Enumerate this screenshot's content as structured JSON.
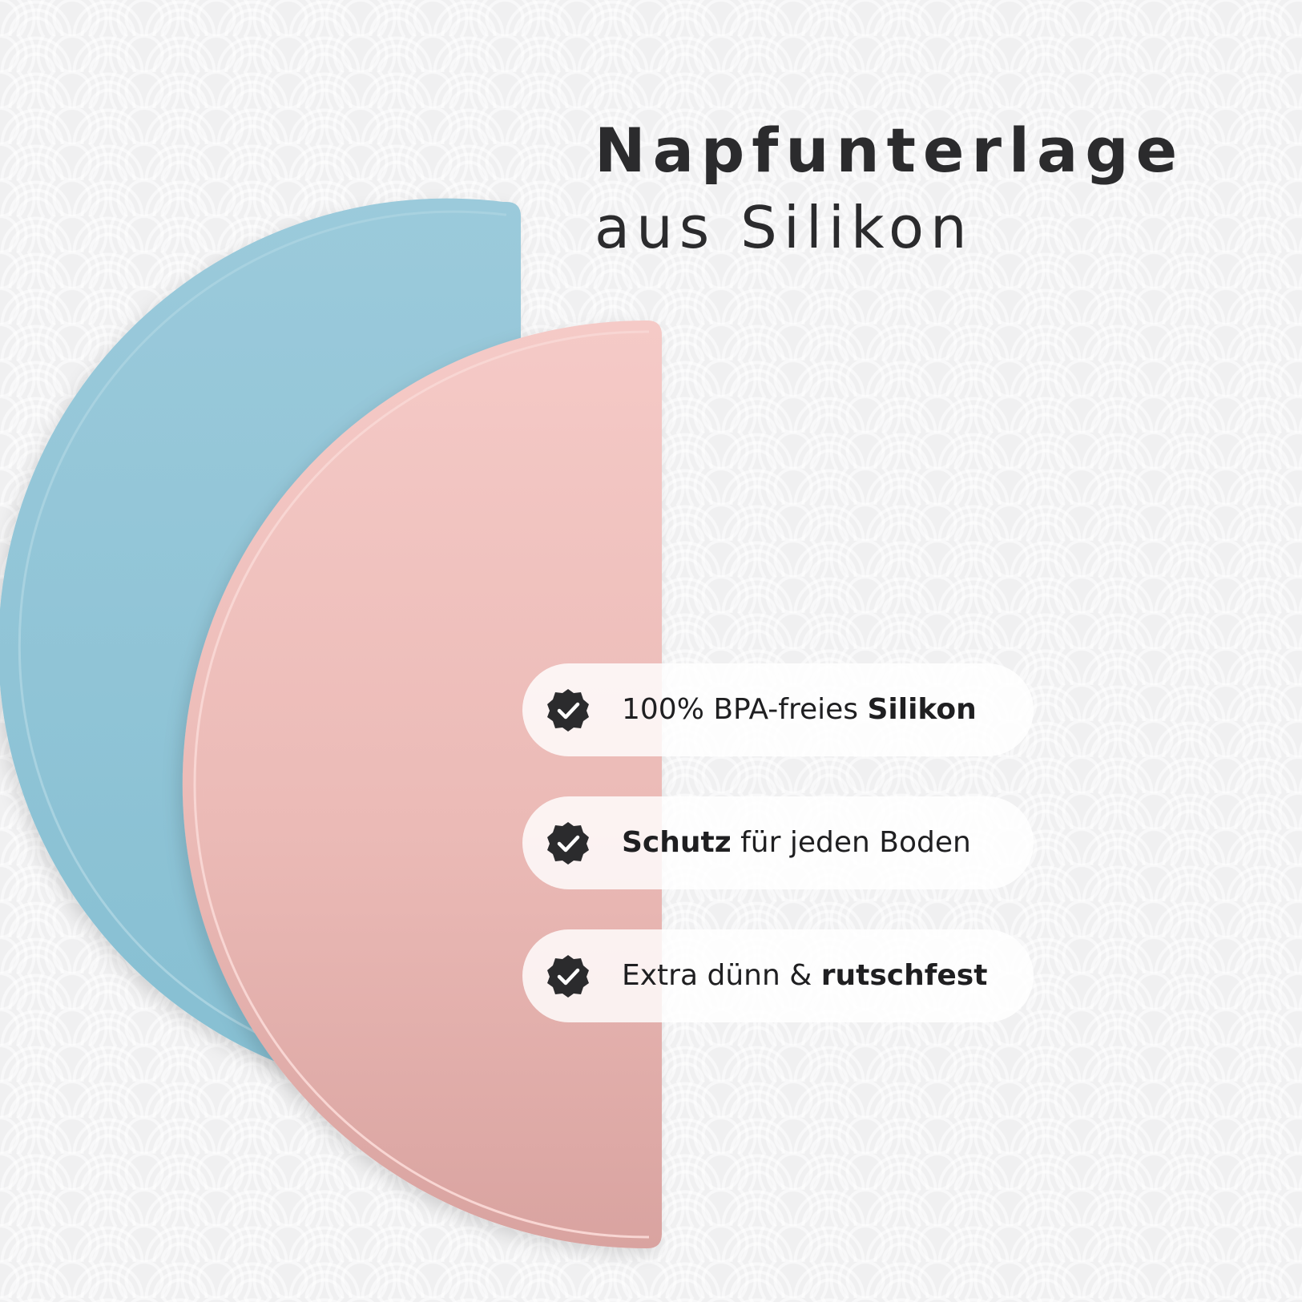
{
  "title": {
    "line1": "Napfunterlage",
    "line2": "aus Silikon"
  },
  "colors": {
    "mat_blue": "#94c6d6",
    "mat_pink": "#eab4b0",
    "text_dark": "#2b2b2d",
    "check_badge": "#2b2b2d"
  },
  "features": [
    {
      "icon": "check-badge-icon",
      "pre": "100% BPA-freies ",
      "bold": "Silikon",
      "post": ""
    },
    {
      "icon": "check-badge-icon",
      "pre": "",
      "bold": "Schutz",
      "post": " für jeden Boden"
    },
    {
      "icon": "check-badge-icon",
      "pre": "Extra dünn & ",
      "bold": "rutschfest",
      "post": ""
    }
  ]
}
